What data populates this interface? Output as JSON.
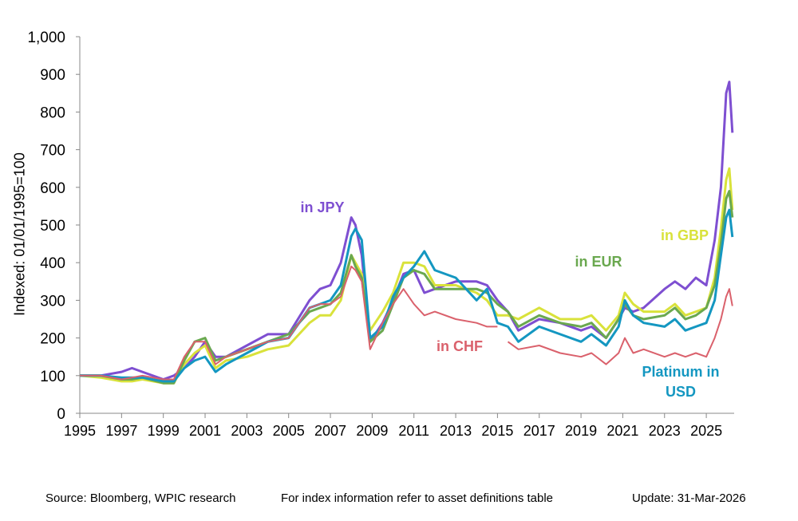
{
  "chart_data": {
    "type": "line",
    "title": "",
    "xlabel": "",
    "ylabel": "Indexed: 01/01/1995=100",
    "ylim": [
      0,
      1000
    ],
    "xlim": [
      1995,
      2026.3
    ],
    "yticks": [
      "0",
      "100",
      "200",
      "300",
      "400",
      "500",
      "600",
      "700",
      "800",
      "900",
      "1,000"
    ],
    "xticks": [
      "1995",
      "1997",
      "1999",
      "2001",
      "2003",
      "2005",
      "2007",
      "2009",
      "2011",
      "2013",
      "2015",
      "2017",
      "2019",
      "2021",
      "2023",
      "2025"
    ],
    "grid": false,
    "x": [
      1995,
      1996,
      1997,
      1997.5,
      1998,
      1999,
      1999.5,
      2000,
      2000.5,
      2001,
      2001.5,
      2002,
      2003,
      2004,
      2005,
      2006,
      2006.5,
      2007,
      2007.5,
      2008,
      2008.2,
      2008.5,
      2008.9,
      2009.5,
      2010,
      2010.5,
      2011,
      2011.5,
      2012,
      2013,
      2014,
      2014.5,
      2015,
      2015.5,
      2016,
      2017,
      2018,
      2019,
      2019.5,
      2020.2,
      2020.8,
      2021.1,
      2021.5,
      2022,
      2023,
      2023.5,
      2024,
      2024.5,
      2025,
      2025.4,
      2025.7,
      2025.95,
      2026.1,
      2026.25
    ],
    "series": [
      {
        "name": "in JPY",
        "color": "#7e4fd1",
        "values": [
          100,
          100,
          110,
          120,
          110,
          90,
          100,
          120,
          150,
          190,
          150,
          150,
          180,
          210,
          210,
          300,
          330,
          340,
          400,
          520,
          500,
          420,
          190,
          240,
          300,
          370,
          380,
          320,
          330,
          350,
          350,
          340,
          300,
          270,
          220,
          250,
          240,
          220,
          230,
          200,
          250,
          280,
          270,
          280,
          330,
          350,
          330,
          360,
          340,
          460,
          600,
          850,
          880,
          745
        ]
      },
      {
        "name": "in GBP",
        "color": "#d9e23b",
        "values": [
          100,
          95,
          85,
          85,
          90,
          80,
          80,
          130,
          160,
          180,
          120,
          140,
          150,
          170,
          180,
          240,
          260,
          260,
          300,
          420,
          400,
          370,
          220,
          270,
          320,
          400,
          400,
          390,
          340,
          340,
          320,
          300,
          260,
          260,
          250,
          280,
          250,
          250,
          260,
          220,
          260,
          320,
          290,
          270,
          270,
          290,
          260,
          270,
          280,
          360,
          490,
          620,
          650,
          540
        ]
      },
      {
        "name": "in EUR",
        "color": "#6aa84f",
        "values": [
          100,
          100,
          90,
          90,
          95,
          80,
          80,
          140,
          190,
          200,
          140,
          150,
          170,
          190,
          210,
          270,
          280,
          290,
          320,
          420,
          390,
          360,
          190,
          220,
          290,
          360,
          380,
          370,
          330,
          330,
          330,
          320,
          290,
          270,
          230,
          260,
          240,
          230,
          240,
          200,
          250,
          290,
          260,
          250,
          260,
          280,
          250,
          260,
          280,
          340,
          450,
          570,
          590,
          520
        ]
      },
      {
        "name": "Platinum in USD",
        "color": "#1497c1",
        "values": [
          100,
          100,
          95,
          95,
          95,
          85,
          85,
          120,
          140,
          150,
          110,
          130,
          160,
          190,
          200,
          280,
          290,
          300,
          340,
          470,
          490,
          460,
          200,
          230,
          310,
          360,
          390,
          430,
          380,
          360,
          300,
          330,
          240,
          230,
          190,
          230,
          210,
          190,
          210,
          180,
          230,
          300,
          260,
          240,
          230,
          250,
          220,
          230,
          240,
          300,
          420,
          520,
          540,
          468
        ]
      },
      {
        "name": "in CHF",
        "color": "#da616c",
        "values": [
          100,
          100,
          90,
          95,
          100,
          90,
          90,
          150,
          190,
          190,
          130,
          150,
          170,
          190,
          200,
          280,
          290,
          290,
          310,
          390,
          380,
          350,
          170,
          240,
          290,
          330,
          290,
          260,
          270,
          250,
          240,
          230,
          230,
          190,
          170,
          180,
          160,
          150,
          160,
          130,
          160,
          200,
          160,
          170,
          150,
          160,
          150,
          160,
          150,
          200,
          250,
          310,
          330,
          285
        ]
      }
    ]
  },
  "footer": {
    "source": "Source: Bloomberg, WPIC research",
    "note": "For index information refer to asset definitions table",
    "update": "Update: 31-Mar-2026"
  }
}
